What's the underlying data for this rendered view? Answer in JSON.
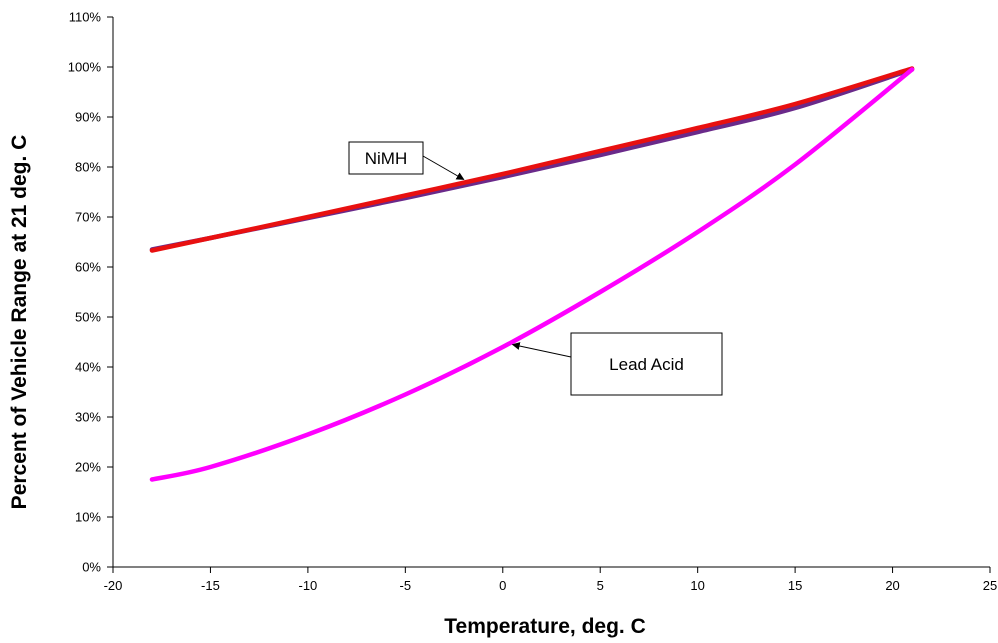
{
  "chart_data": {
    "type": "line",
    "title": "",
    "xlabel": "Temperature, deg. C",
    "ylabel": "Percent of Vehicle Range at 21 deg. C",
    "xlim": [
      -20,
      25
    ],
    "ylim": [
      0,
      110
    ],
    "x_ticks": [
      "-20",
      "-15",
      "-10",
      "-5",
      "0",
      "5",
      "10",
      "15",
      "20",
      "25"
    ],
    "y_ticks": [
      "0%",
      "10%",
      "20%",
      "30%",
      "40%",
      "50%",
      "60%",
      "70%",
      "80%",
      "90%",
      "100%",
      "110%"
    ],
    "grid": false,
    "legend": "none",
    "series": [
      {
        "name": "NiMH",
        "color": "#6a2a8a",
        "x": [
          -18,
          -15,
          -10,
          -5,
          0,
          5,
          10,
          15,
          21
        ],
        "y": [
          63.5,
          65.8,
          69.8,
          73.8,
          78.0,
          82.4,
          87.0,
          91.8,
          99.5
        ]
      },
      {
        "name": "NiMH",
        "color": "#e81010",
        "x": [
          -18,
          -15,
          -10,
          -5,
          0,
          5,
          10,
          15,
          21
        ],
        "y": [
          63.3,
          65.8,
          70.0,
          74.3,
          78.6,
          83.2,
          87.8,
          92.6,
          99.7
        ]
      },
      {
        "name": "Lead Acid",
        "color": "#ff00ff",
        "x": [
          -18,
          -15,
          -10,
          -5,
          0,
          5,
          10,
          15,
          21
        ],
        "y": [
          17.5,
          20.0,
          26.5,
          34.5,
          44.0,
          55.0,
          67.0,
          80.5,
          99.5
        ]
      }
    ],
    "annotations": [
      {
        "text": "NiMH",
        "points_to": [
          -2,
          77.5
        ]
      },
      {
        "text": "Lead Acid",
        "points_to": [
          0.5,
          44.5
        ]
      }
    ]
  }
}
